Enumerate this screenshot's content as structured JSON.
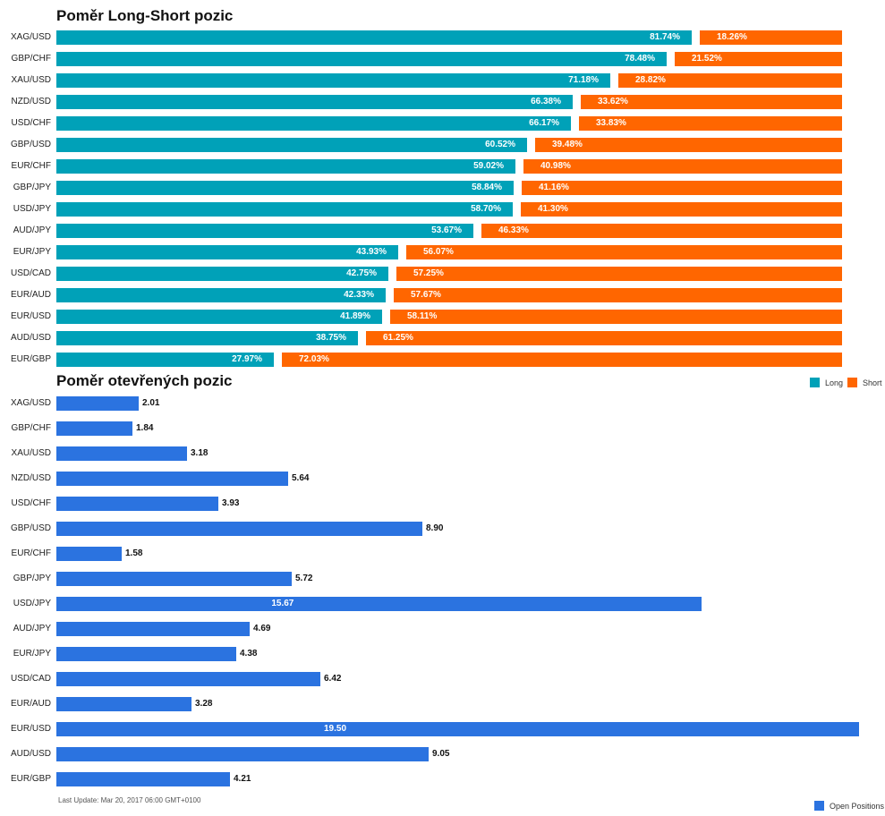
{
  "titles": {
    "long_short": "Poměr Long-Short pozic",
    "open_positions": "Poměr otevřených pozic"
  },
  "legend": {
    "long": "Long",
    "short": "Short",
    "open_positions": "Open Positions"
  },
  "footer": "Last Update: Mar 20, 2017 06:00 GMT+0100",
  "colors": {
    "long": "#00a1b8",
    "short": "#ff6600",
    "open_positions": "#2b73e0"
  },
  "chart_data": [
    {
      "type": "bar",
      "orientation": "horizontal",
      "stacked": true,
      "title": "Poměr Long-Short pozic",
      "categories": [
        "XAG/USD",
        "GBP/CHF",
        "XAU/USD",
        "NZD/USD",
        "USD/CHF",
        "GBP/USD",
        "EUR/CHF",
        "GBP/JPY",
        "USD/JPY",
        "AUD/JPY",
        "EUR/JPY",
        "USD/CAD",
        "EUR/AUD",
        "EUR/USD",
        "AUD/USD",
        "EUR/GBP"
      ],
      "series": [
        {
          "name": "Long",
          "values": [
            81.74,
            78.48,
            71.18,
            66.38,
            66.17,
            60.52,
            59.02,
            58.84,
            58.7,
            53.67,
            43.93,
            42.75,
            42.33,
            41.89,
            38.75,
            27.97
          ]
        },
        {
          "name": "Short",
          "values": [
            18.26,
            21.52,
            28.82,
            33.62,
            33.83,
            39.48,
            40.98,
            41.16,
            41.3,
            46.33,
            56.07,
            57.25,
            57.67,
            58.11,
            61.25,
            72.03
          ]
        }
      ],
      "labels": {
        "Long": [
          "81.74%",
          "78.48%",
          "71.18%",
          "66.38%",
          "66.17%",
          "60.52%",
          "59.02%",
          "58.84%",
          "58.70%",
          "53.67%",
          "43.93%",
          "42.75%",
          "42.33%",
          "41.89%",
          "38.75%",
          "27.97%"
        ],
        "Short": [
          "18.26%",
          "21.52%",
          "28.82%",
          "33.62%",
          "33.83%",
          "39.48%",
          "40.98%",
          "41.16%",
          "41.30%",
          "46.33%",
          "56.07%",
          "57.25%",
          "57.67%",
          "58.11%",
          "61.25%",
          "72.03%"
        ]
      },
      "ylim": [
        0,
        100
      ],
      "legend_position": "right"
    },
    {
      "type": "bar",
      "orientation": "horizontal",
      "title": "Poměr otevřených pozic",
      "categories": [
        "XAG/USD",
        "GBP/CHF",
        "XAU/USD",
        "NZD/USD",
        "USD/CHF",
        "GBP/USD",
        "EUR/CHF",
        "GBP/JPY",
        "USD/JPY",
        "AUD/JPY",
        "EUR/JPY",
        "USD/CAD",
        "EUR/AUD",
        "EUR/USD",
        "AUD/USD",
        "EUR/GBP"
      ],
      "series": [
        {
          "name": "Open Positions",
          "values": [
            2.01,
            1.84,
            3.18,
            5.64,
            3.93,
            8.9,
            1.58,
            5.72,
            15.67,
            4.69,
            4.38,
            6.42,
            3.28,
            19.5,
            9.05,
            4.21
          ]
        }
      ],
      "labels": [
        "2.01",
        "1.84",
        "3.18",
        "5.64",
        "3.93",
        "8.90",
        "1.58",
        "5.72",
        "15.67",
        "4.69",
        "4.38",
        "6.42",
        "3.28",
        "19.50",
        "9.05",
        "4.21"
      ],
      "xlim": [
        0,
        19.5
      ],
      "legend_position": "bottom-right"
    }
  ]
}
